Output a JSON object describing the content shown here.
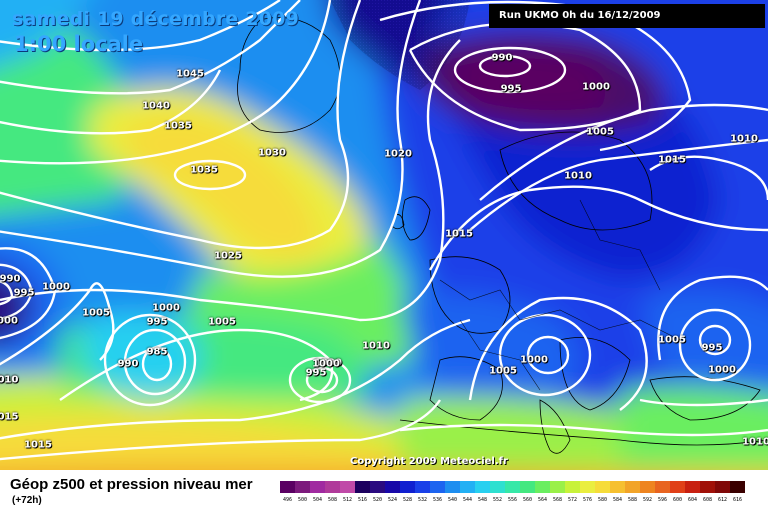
{
  "header": {
    "date": "samedi 19 décembre 2009",
    "time": "1:00 locale",
    "run": "Run UKMO 0h du 16/12/2009"
  },
  "copyright": "Copyright 2009 Meteociel.fr",
  "legend": {
    "title": "Géop z500 et pression niveau mer",
    "subtitle": "(+72h)",
    "values": [
      "496",
      "500",
      "504",
      "508",
      "512",
      "516",
      "520",
      "524",
      "528",
      "532",
      "536",
      "540",
      "544",
      "548",
      "552",
      "556",
      "560",
      "564",
      "568",
      "572",
      "576",
      "580",
      "584",
      "588",
      "592",
      "596",
      "600",
      "604",
      "608",
      "612",
      "616"
    ],
    "colors": [
      "#5a0062",
      "#7c1a7c",
      "#a02aa0",
      "#b03a9a",
      "#c04aa8",
      "#1c005e",
      "#2a0a80",
      "#1808a8",
      "#1020d0",
      "#1a40e8",
      "#1c64f0",
      "#1e8ef0",
      "#22b0f4",
      "#28d0f0",
      "#2ee0d0",
      "#36e8a8",
      "#44e880",
      "#6aee60",
      "#9af048",
      "#c8f23a",
      "#eaee40",
      "#f6dc3a",
      "#f6c030",
      "#f2a428",
      "#ee8420",
      "#e86420",
      "#e04018",
      "#c82010",
      "#a01008",
      "#800808",
      "#3a0000"
    ]
  },
  "isobar_labels": [
    {
      "text": "1045"
    },
    {
      "text": "1040"
    },
    {
      "text": "1035"
    },
    {
      "text": "1030"
    },
    {
      "text": "1035"
    },
    {
      "text": "1025"
    },
    {
      "text": "1020"
    },
    {
      "text": "1015"
    },
    {
      "text": "1010"
    },
    {
      "text": "1005"
    },
    {
      "text": "1000"
    },
    {
      "text": "995"
    },
    {
      "text": "985"
    },
    {
      "text": "990"
    },
    {
      "text": "1000"
    },
    {
      "text": "995"
    },
    {
      "text": "1010"
    },
    {
      "text": "1005"
    },
    {
      "text": "1000"
    },
    {
      "text": "990"
    },
    {
      "text": "995"
    },
    {
      "text": "1000"
    },
    {
      "text": "1005"
    },
    {
      "text": "1010"
    },
    {
      "text": "1015"
    },
    {
      "text": "1010"
    },
    {
      "text": "1005"
    },
    {
      "text": "995"
    },
    {
      "text": "1000"
    },
    {
      "text": "990"
    },
    {
      "text": "995"
    },
    {
      "text": "1000"
    },
    {
      "text": "1000"
    },
    {
      "text": "010"
    },
    {
      "text": "015"
    },
    {
      "text": "1015"
    },
    {
      "text": "1005"
    },
    {
      "text": "1000"
    },
    {
      "text": "1010"
    }
  ]
}
